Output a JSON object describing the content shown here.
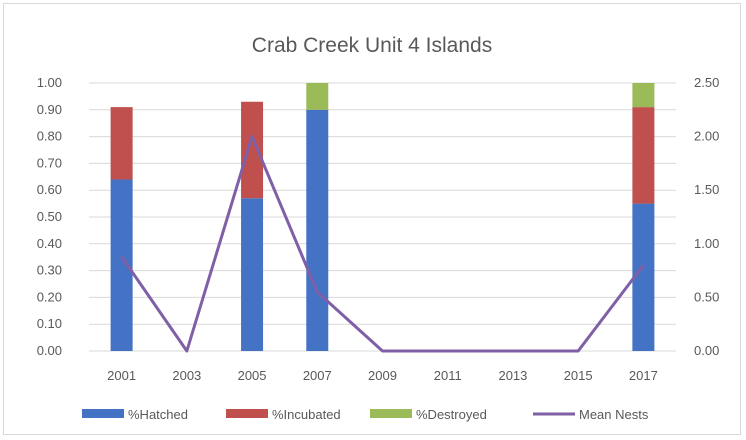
{
  "chart_data": {
    "type": "bar",
    "title": "Crab Creek Unit 4 Islands",
    "categories": [
      "2001",
      "2003",
      "2005",
      "2007",
      "2009",
      "2011",
      "2013",
      "2015",
      "2017"
    ],
    "stacked": true,
    "series": [
      {
        "name": "%Hatched",
        "type": "bar",
        "axis": "left",
        "color": "#4472c4",
        "values": [
          0.64,
          0,
          0.57,
          0.9,
          0,
          0,
          0,
          0,
          0.55
        ]
      },
      {
        "name": "%Incubated",
        "type": "bar",
        "axis": "left",
        "color": "#c0504d",
        "values": [
          0.27,
          0,
          0.36,
          0,
          0,
          0,
          0,
          0,
          0.36
        ]
      },
      {
        "name": "%Destroyed",
        "type": "bar",
        "axis": "left",
        "color": "#9bbb59",
        "values": [
          0,
          0,
          0,
          0.1,
          0,
          0,
          0,
          0,
          0.09
        ]
      },
      {
        "name": "Mean Nests",
        "type": "line",
        "axis": "right",
        "color": "#7f5fa6",
        "values": [
          0.88,
          0,
          2.0,
          0.55,
          0,
          0,
          0,
          0,
          0.8
        ]
      }
    ],
    "y_left": {
      "range": [
        0,
        1.0
      ],
      "ticks": [
        "0.00",
        "0.10",
        "0.20",
        "0.30",
        "0.40",
        "0.50",
        "0.60",
        "0.70",
        "0.80",
        "0.90",
        "1.00"
      ]
    },
    "y_right": {
      "range": [
        0,
        2.5
      ],
      "ticks": [
        "0.00",
        "0.50",
        "1.00",
        "1.50",
        "2.00",
        "2.50"
      ]
    },
    "grid": true,
    "legend_position": "bottom"
  }
}
